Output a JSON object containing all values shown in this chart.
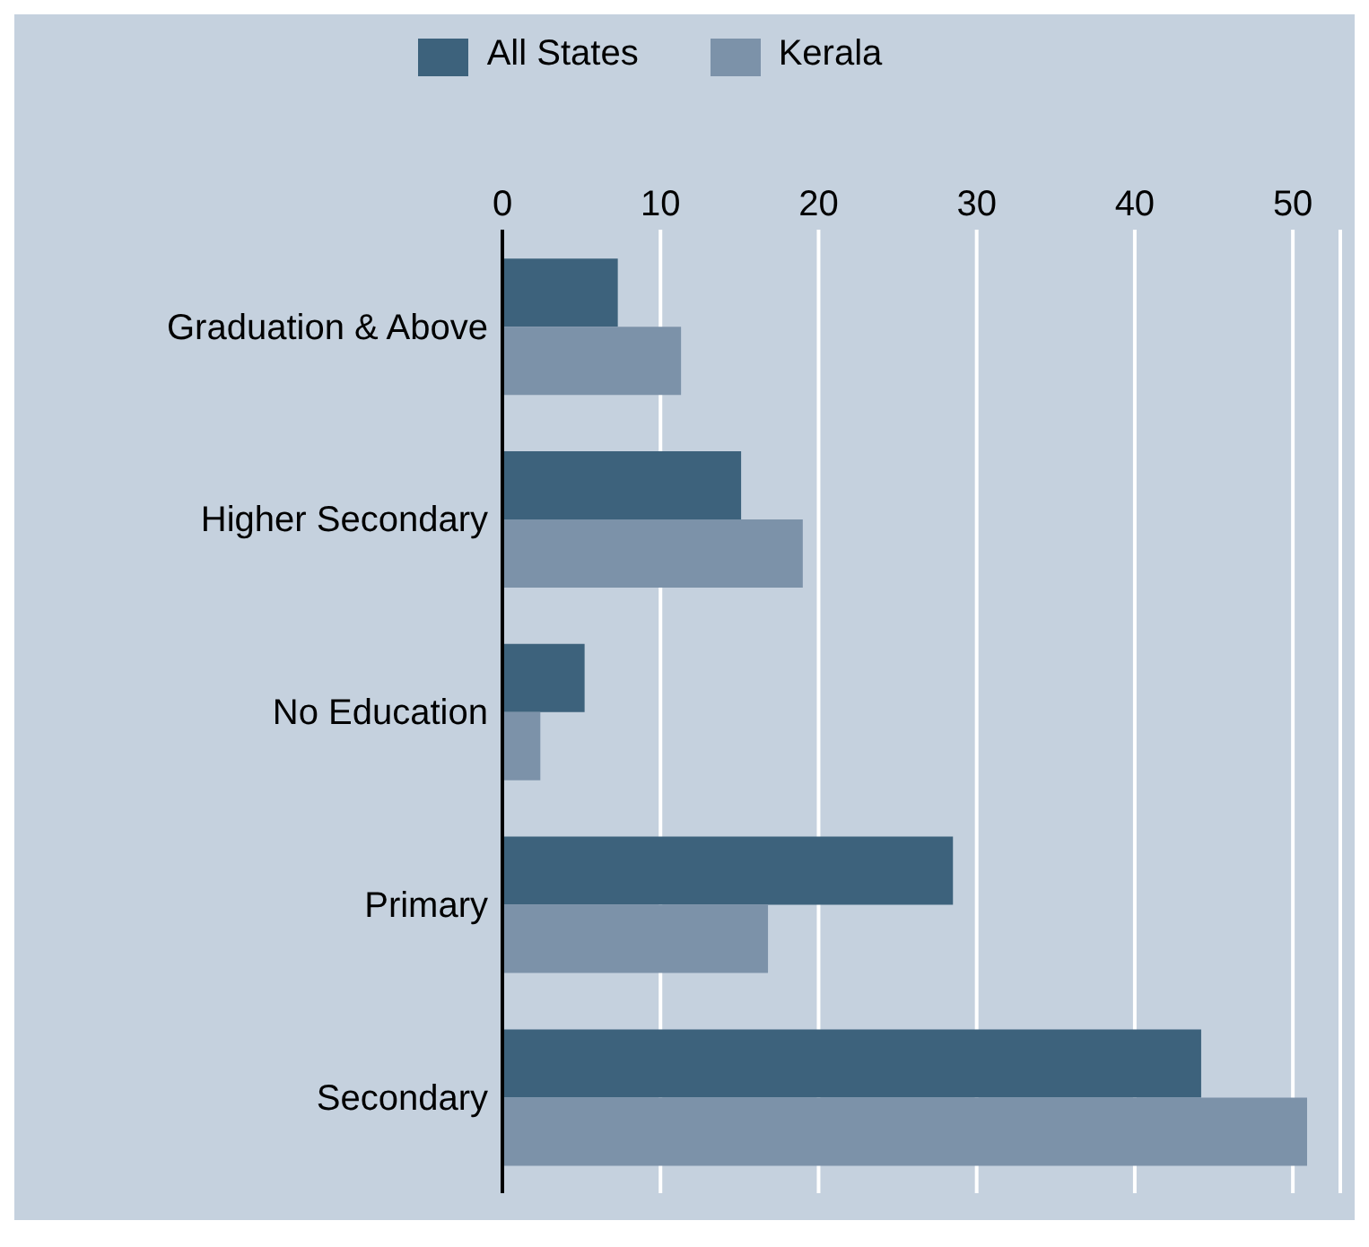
{
  "chart_data": {
    "type": "bar",
    "orientation": "horizontal",
    "categories": [
      "Graduation & Above",
      "Higher Secondary",
      "No Education",
      "Primary",
      "Secondary"
    ],
    "series": [
      {
        "name": "All States",
        "color": "#3d627c",
        "values": [
          7.3,
          15.1,
          5.2,
          28.5,
          44.2
        ]
      },
      {
        "name": "Kerala",
        "color": "#7c92a9",
        "values": [
          11.3,
          19.0,
          2.4,
          16.8,
          50.9
        ]
      }
    ],
    "xlim": [
      0,
      53
    ],
    "xticks": [
      0,
      10,
      20,
      30,
      40,
      50
    ],
    "grid": "x",
    "legend": "top"
  }
}
